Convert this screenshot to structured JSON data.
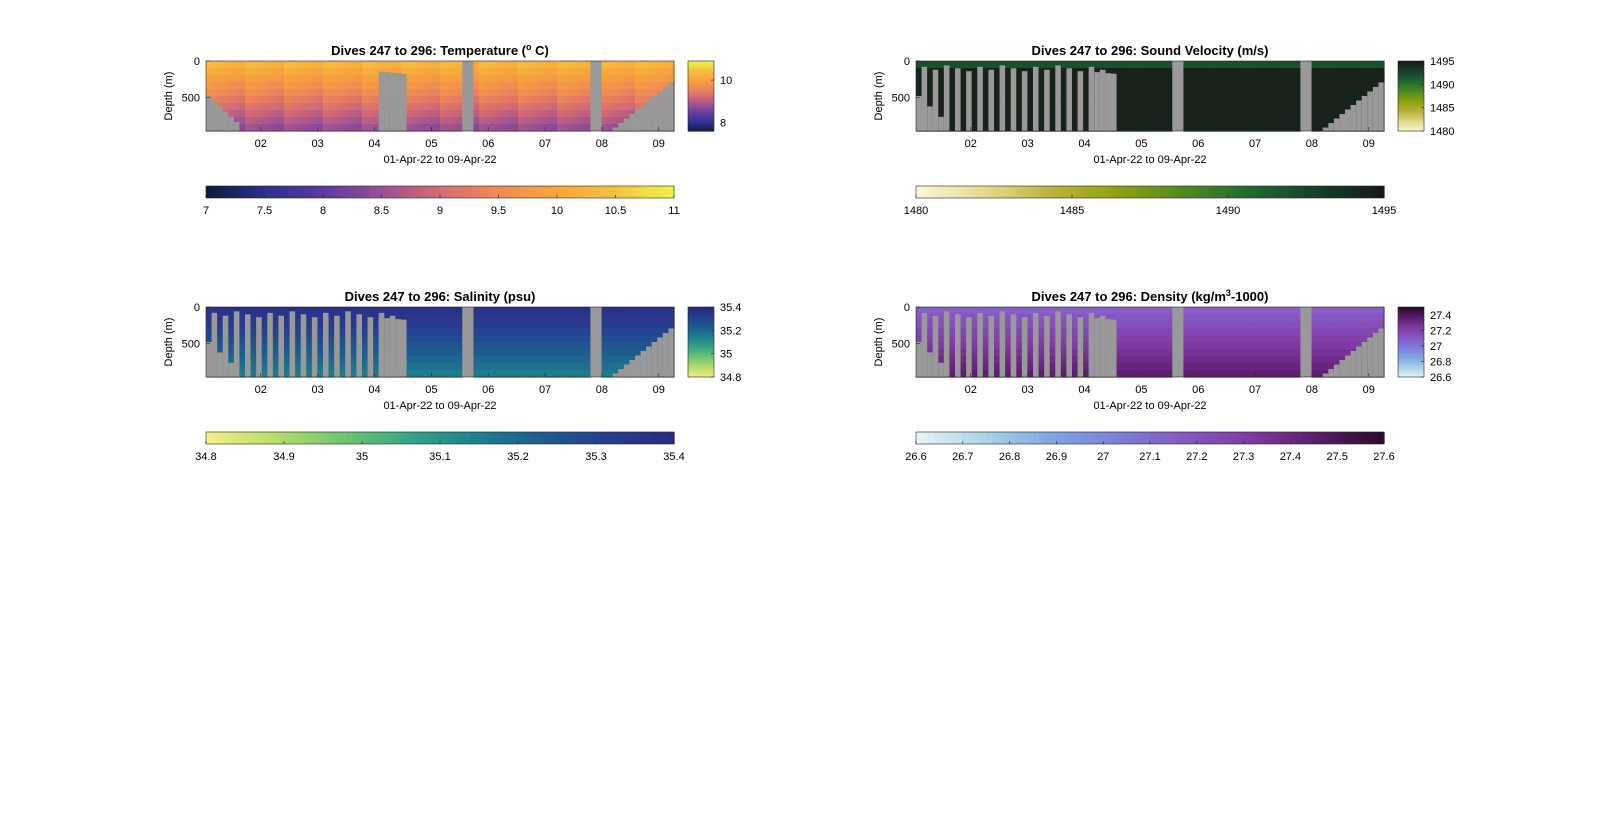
{
  "figure_title": "",
  "gap_color": "#999999",
  "chart_data": [
    {
      "type": "heatmap",
      "title": "Dives 247 to 296: Temperature (",
      "title_sup": "o",
      "title_tail": " C)",
      "ylabel": "Depth (m)",
      "xlabel": "01-Apr-22 to 09-Apr-22",
      "ylim": [
        0,
        960
      ],
      "y_reversed": true,
      "y_ticks": [
        0,
        500
      ],
      "x_tick_labels": [
        "02",
        "03",
        "04",
        "05",
        "06",
        "07",
        "08",
        "09"
      ],
      "clim": [
        7,
        11
      ],
      "colormap": [
        "#0b1d3b",
        "#2d2f8f",
        "#5b3a9f",
        "#9a4f95",
        "#d46a73",
        "#f08a55",
        "#f8a43c",
        "#f5c042",
        "#eef04c"
      ],
      "colorbar_ticks": [
        "7",
        "7.5",
        "8",
        "8.5",
        "9",
        "9.5",
        "10",
        "10.5",
        "11"
      ],
      "side_colorbar_ticks": [
        "10",
        "8"
      ],
      "side_colorbar_values": [
        10,
        8
      ],
      "side_colorbar_range": [
        7.6,
        10.9
      ]
    },
    {
      "type": "heatmap",
      "title": "Dives 247 to 296: Sound Velocity (m/s)",
      "ylabel": "Depth (m)",
      "xlabel": "01-Apr-22 to 09-Apr-22",
      "ylim": [
        0,
        960
      ],
      "y_reversed": true,
      "y_ticks": [
        0,
        500
      ],
      "x_tick_labels": [
        "02",
        "03",
        "04",
        "05",
        "06",
        "07",
        "08",
        "09"
      ],
      "clim": [
        1480,
        1495
      ],
      "colormap": [
        "#fbf8d6",
        "#e2da8e",
        "#bdb33e",
        "#8fa20f",
        "#4f8a1f",
        "#1f6a32",
        "#15402a",
        "#161a16"
      ],
      "colorbar_ticks": [
        "1480",
        "1485",
        "1490",
        "1495"
      ],
      "side_colorbar_ticks": [
        "1495",
        "1490",
        "1485",
        "1480"
      ],
      "side_colorbar_values": [
        1495,
        1490,
        1485,
        1480
      ],
      "side_colorbar_range": [
        1480,
        1495
      ]
    },
    {
      "type": "heatmap",
      "title": "Dives 247 to 296: Salinity (psu)",
      "ylabel": "Depth (m)",
      "xlabel": "01-Apr-22 to 09-Apr-22",
      "ylim": [
        0,
        960
      ],
      "y_reversed": true,
      "y_ticks": [
        0,
        500
      ],
      "x_tick_labels": [
        "02",
        "03",
        "04",
        "05",
        "06",
        "07",
        "08",
        "09"
      ],
      "clim": [
        34.8,
        35.4
      ],
      "colormap": [
        "#f4ee8a",
        "#b9dc6b",
        "#72c66f",
        "#3aa585",
        "#1d8290",
        "#1c5d8e",
        "#263d8f",
        "#2a2a86"
      ],
      "colorbar_ticks": [
        "34.8",
        "34.9",
        "35",
        "35.1",
        "35.2",
        "35.3",
        "35.4"
      ],
      "side_colorbar_ticks": [
        "35.4",
        "35.2",
        "35",
        "34.8"
      ],
      "side_colorbar_values": [
        35.4,
        35.2,
        35.0,
        34.8
      ],
      "side_colorbar_range": [
        34.8,
        35.4
      ]
    },
    {
      "type": "heatmap",
      "title": "Dives 247 to 296: Density (kg/m",
      "title_sup": "3",
      "title_tail": "-1000)",
      "ylabel": "Depth (m)",
      "xlabel": "01-Apr-22 to 09-Apr-22",
      "ylim": [
        0,
        960
      ],
      "y_reversed": true,
      "y_ticks": [
        0,
        500
      ],
      "x_tick_labels": [
        "02",
        "03",
        "04",
        "05",
        "06",
        "07",
        "08",
        "09"
      ],
      "clim": [
        26.6,
        27.6
      ],
      "colormap": [
        "#e6f4f5",
        "#a9d4e6",
        "#7fa6e2",
        "#7c7fd9",
        "#8659c4",
        "#7f3aa2",
        "#5c1d6d",
        "#2e0a2c"
      ],
      "colorbar_ticks": [
        "26.6",
        "26.7",
        "26.8",
        "26.9",
        "27",
        "27.1",
        "27.2",
        "27.3",
        "27.4",
        "27.5",
        "27.6"
      ],
      "side_colorbar_ticks": [
        "27.4",
        "27.2",
        "27",
        "26.8",
        "26.6"
      ],
      "side_colorbar_values": [
        27.4,
        27.2,
        27.0,
        26.8,
        26.6
      ],
      "side_colorbar_range": [
        26.6,
        27.5
      ]
    }
  ]
}
